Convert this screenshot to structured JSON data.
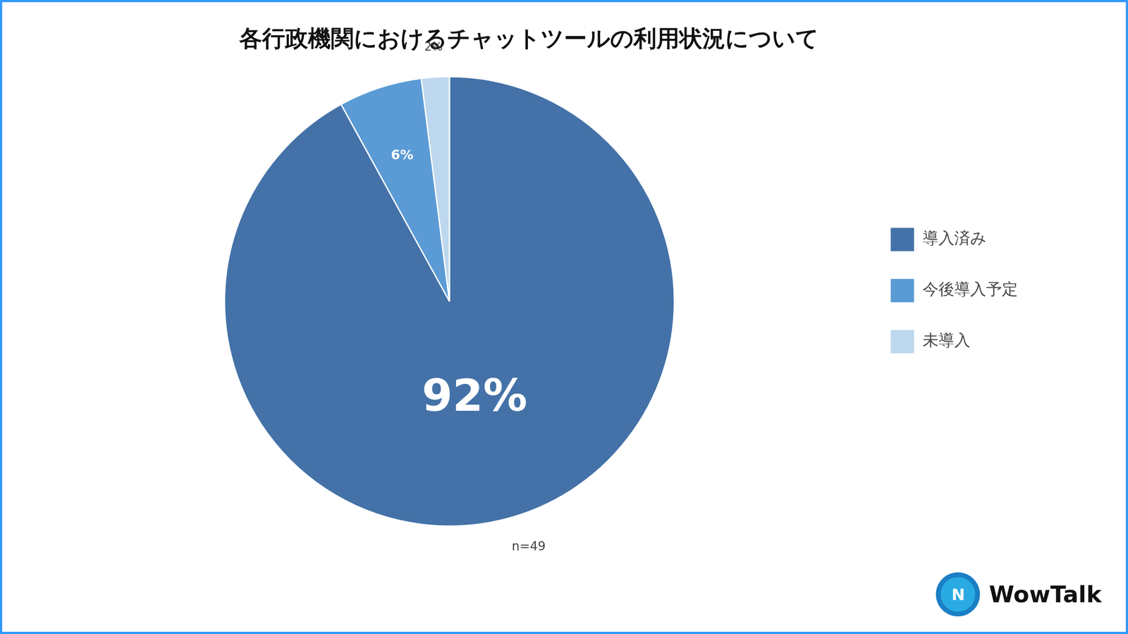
{
  "chart_data": {
    "type": "pie",
    "title": "各行政機関におけるチャットツールの利用状況について",
    "subtitle": "n=49",
    "categories": [
      "導入済み",
      "今後導入予定",
      "未導入"
    ],
    "values": [
      92,
      6,
      2
    ],
    "value_labels": [
      "92%",
      "6%",
      "2%"
    ],
    "colors": [
      "#4472a8",
      "#5b9bd5",
      "#bdd7ee"
    ],
    "data_labels": true,
    "legend": "right",
    "annotations": [
      "N",
      "WowTalk"
    ]
  }
}
